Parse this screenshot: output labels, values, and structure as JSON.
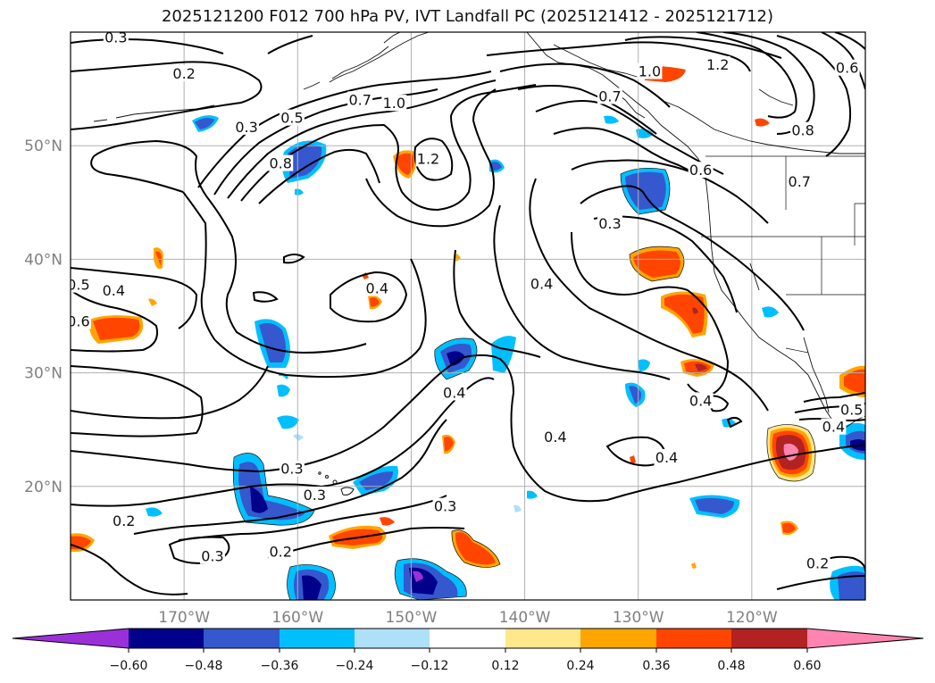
{
  "title": "2025121200 F012 700 hPa PV, IVT Landfall PC (2025121412 - 2025121712)",
  "map": {
    "lon_range": [
      -180,
      -110
    ],
    "lat_range": [
      10,
      60
    ],
    "lon_ticks": [
      {
        "value": -170,
        "label": "170°W"
      },
      {
        "value": -160,
        "label": "160°W"
      },
      {
        "value": -150,
        "label": "150°W"
      },
      {
        "value": -140,
        "label": "140°W"
      },
      {
        "value": -130,
        "label": "130°W"
      },
      {
        "value": -120,
        "label": "120°W"
      }
    ],
    "lat_ticks": [
      {
        "value": 20,
        "label": "20°N"
      },
      {
        "value": 30,
        "label": "30°N"
      },
      {
        "value": 40,
        "label": "40°N"
      },
      {
        "value": 50,
        "label": "50°N"
      }
    ],
    "grid": true,
    "contour_labels": [
      {
        "text": "0.3",
        "lon": -176,
        "lat": 59.5
      },
      {
        "text": "0.2",
        "lon": -170,
        "lat": 56.3
      },
      {
        "text": "0.3",
        "lon": -164.5,
        "lat": 51.6
      },
      {
        "text": "0.5",
        "lon": -160.5,
        "lat": 52.4
      },
      {
        "text": "0.7",
        "lon": -154.5,
        "lat": 54
      },
      {
        "text": "1.0",
        "lon": -151.5,
        "lat": 53.7
      },
      {
        "text": "0.8",
        "lon": -161.5,
        "lat": 48.4
      },
      {
        "text": "1.2",
        "lon": -148.5,
        "lat": 48.8
      },
      {
        "text": "0.7",
        "lon": -132.5,
        "lat": 54.3
      },
      {
        "text": "1.0",
        "lon": -129,
        "lat": 56.5
      },
      {
        "text": "1.2",
        "lon": -123,
        "lat": 57.1
      },
      {
        "text": "0.6",
        "lon": -111.6,
        "lat": 56.8
      },
      {
        "text": "0.8",
        "lon": -115.5,
        "lat": 51.3
      },
      {
        "text": "0.6",
        "lon": -124.5,
        "lat": 47.8
      },
      {
        "text": "0.7",
        "lon": -115.8,
        "lat": 46.8
      },
      {
        "text": "0.3",
        "lon": -132.5,
        "lat": 43.1
      },
      {
        "text": "0.4",
        "lon": -176.2,
        "lat": 37.2
      },
      {
        "text": "0.5",
        "lon": -179.3,
        "lat": 37.7
      },
      {
        "text": "0.6",
        "lon": -179.3,
        "lat": 34.5
      },
      {
        "text": "0.4",
        "lon": -153,
        "lat": 37.4
      },
      {
        "text": "0.4",
        "lon": -138.5,
        "lat": 37.8
      },
      {
        "text": "0.4",
        "lon": -146.2,
        "lat": 28.2
      },
      {
        "text": "0.4",
        "lon": -124.5,
        "lat": 27.5
      },
      {
        "text": "0.4",
        "lon": -137.3,
        "lat": 24.3
      },
      {
        "text": "0.4",
        "lon": -127.5,
        "lat": 22.5
      },
      {
        "text": "0.4",
        "lon": -112.8,
        "lat": 25.2
      },
      {
        "text": "0.5",
        "lon": -111.2,
        "lat": 26.7
      },
      {
        "text": "0.3",
        "lon": -160.5,
        "lat": 21.5
      },
      {
        "text": "0.3",
        "lon": -158.5,
        "lat": 19.2
      },
      {
        "text": "0.3",
        "lon": -147,
        "lat": 18.2
      },
      {
        "text": "0.2",
        "lon": -175.3,
        "lat": 16.9
      },
      {
        "text": "0.3",
        "lon": -167.5,
        "lat": 13.8
      },
      {
        "text": "0.2",
        "lon": -161.5,
        "lat": 14.2
      },
      {
        "text": "0.2",
        "lon": -114.2,
        "lat": 13.2
      }
    ]
  },
  "colorbar": {
    "tick_labels": [
      "−0.60",
      "−0.48",
      "−0.36",
      "−0.24",
      "−0.12",
      "0.12",
      "0.24",
      "0.36",
      "0.48",
      "0.60"
    ],
    "colors": {
      "neg_extend": "#9b30d9",
      "neg_060_048": "#00008b",
      "neg_048_036": "#3558cf",
      "neg_036_024": "#00bfff",
      "neg_024_012": "#aee0f8",
      "neutral": "#ffffff",
      "pos_012_024": "#ffe88c",
      "pos_024_036": "#ffa500",
      "pos_036_048": "#ff4500",
      "pos_048_060": "#b22222",
      "pos_extend": "#ff85b0"
    }
  }
}
